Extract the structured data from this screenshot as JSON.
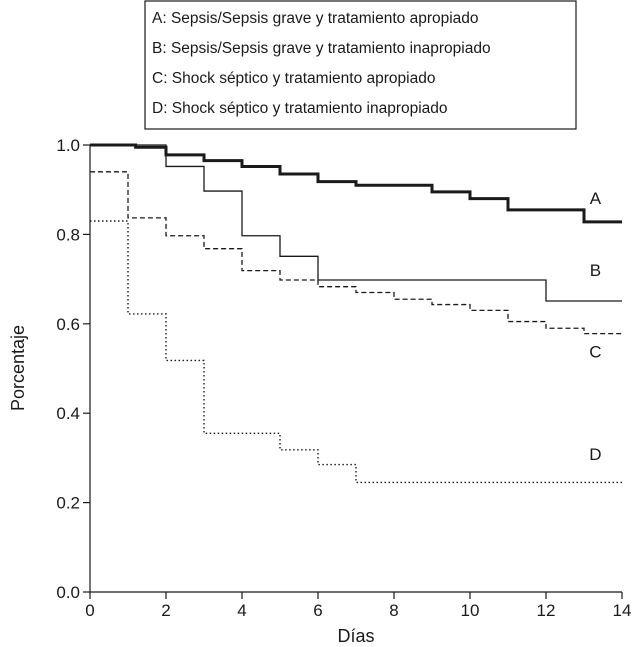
{
  "chart_data": {
    "type": "line",
    "step": true,
    "title": "",
    "xlabel": "Días",
    "ylabel": "Porcentaje",
    "xlim": [
      0,
      14
    ],
    "ylim": [
      0.0,
      1.0
    ],
    "x_ticks": [
      "0",
      "2",
      "4",
      "6",
      "8",
      "10",
      "12",
      "14"
    ],
    "y_ticks": [
      "0.0",
      "0.2",
      "0.4",
      "0.6",
      "0.8",
      "1.0"
    ],
    "grid": false,
    "legend_position": "top-center",
    "legend": [
      "A: Sepsis/Sepsis grave y tratamiento apropiado",
      "B: Sepsis/Sepsis grave y tratamiento inapropiado",
      "C: Shock séptico y tratamiento apropiado",
      "D: Shock séptico y tratamiento inapropiado"
    ],
    "series": [
      {
        "name": "A",
        "style": "solid-thick",
        "x": [
          0,
          1.2,
          2,
          3,
          4,
          5,
          6,
          7,
          9,
          10,
          11,
          13,
          14
        ],
        "y": [
          1.0,
          0.995,
          0.978,
          0.965,
          0.952,
          0.935,
          0.918,
          0.91,
          0.895,
          0.88,
          0.855,
          0.828,
          0.828
        ]
      },
      {
        "name": "B",
        "style": "solid-thin",
        "x": [
          0,
          2,
          3,
          4,
          5,
          6,
          12,
          14
        ],
        "y": [
          1.0,
          0.952,
          0.897,
          0.797,
          0.751,
          0.698,
          0.651,
          0.651
        ]
      },
      {
        "name": "C",
        "style": "dashed",
        "x": [
          0,
          1,
          2,
          3,
          4,
          5,
          6,
          7,
          8,
          9,
          10,
          11,
          12,
          13,
          14
        ],
        "y": [
          0.94,
          0.837,
          0.797,
          0.768,
          0.719,
          0.698,
          0.683,
          0.67,
          0.655,
          0.643,
          0.63,
          0.605,
          0.59,
          0.578,
          0.578
        ]
      },
      {
        "name": "D",
        "style": "dotted",
        "x": [
          0,
          1,
          2,
          3,
          5,
          6,
          7,
          14
        ],
        "y": [
          0.83,
          0.622,
          0.518,
          0.355,
          0.318,
          0.285,
          0.245,
          0.245
        ]
      }
    ],
    "curve_labels": [
      "A",
      "B",
      "C",
      "D"
    ],
    "curve_label_positions": [
      {
        "x": 13.3,
        "y": 0.868
      },
      {
        "x": 13.3,
        "y": 0.707
      },
      {
        "x": 13.3,
        "y": 0.525
      },
      {
        "x": 13.3,
        "y": 0.295
      }
    ]
  }
}
